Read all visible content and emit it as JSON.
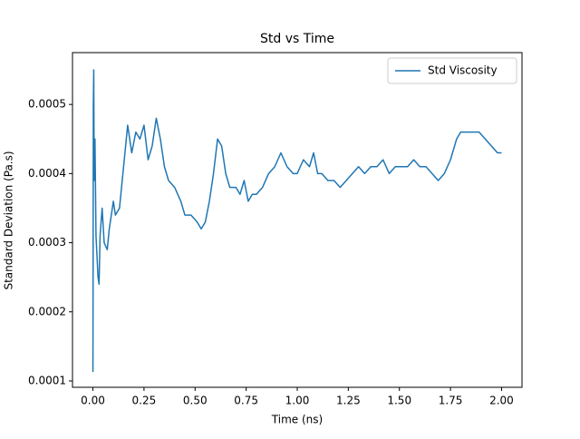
{
  "chart_data": {
    "type": "line",
    "title": "Std vs Time",
    "x_label": "Time (ns)",
    "y_label": "Standard Deviation (Pa.s)",
    "x": [
      0.0,
      0.002,
      0.004,
      0.006,
      0.01,
      0.015,
      0.02,
      0.025,
      0.03,
      0.035,
      0.045,
      0.055,
      0.07,
      0.08,
      0.1,
      0.11,
      0.13,
      0.15,
      0.17,
      0.19,
      0.21,
      0.23,
      0.25,
      0.27,
      0.29,
      0.31,
      0.33,
      0.35,
      0.37,
      0.4,
      0.43,
      0.45,
      0.48,
      0.51,
      0.53,
      0.55,
      0.57,
      0.59,
      0.61,
      0.63,
      0.65,
      0.67,
      0.7,
      0.72,
      0.74,
      0.76,
      0.78,
      0.8,
      0.83,
      0.86,
      0.89,
      0.92,
      0.95,
      0.98,
      1.0,
      1.03,
      1.06,
      1.08,
      1.1,
      1.12,
      1.15,
      1.18,
      1.21,
      1.24,
      1.27,
      1.3,
      1.33,
      1.36,
      1.39,
      1.42,
      1.45,
      1.48,
      1.51,
      1.54,
      1.57,
      1.6,
      1.63,
      1.66,
      1.69,
      1.72,
      1.75,
      1.78,
      1.8,
      1.83,
      1.86,
      1.89,
      1.92,
      1.95,
      1.98,
      2.0
    ],
    "series": [
      {
        "name": "Std Viscosity",
        "color": "#1f77b4",
        "values": [
          0.000113,
          0.0005,
          0.00055,
          0.00039,
          0.00045,
          0.00031,
          0.00028,
          0.00025,
          0.00024,
          0.00031,
          0.00035,
          0.0003,
          0.00029,
          0.00032,
          0.00036,
          0.00034,
          0.00035,
          0.00041,
          0.00047,
          0.00043,
          0.00046,
          0.00045,
          0.00047,
          0.00042,
          0.00044,
          0.00048,
          0.00045,
          0.00041,
          0.00039,
          0.00038,
          0.00036,
          0.00034,
          0.00034,
          0.00033,
          0.00032,
          0.00033,
          0.00036,
          0.0004,
          0.00045,
          0.00044,
          0.0004,
          0.00038,
          0.00038,
          0.00037,
          0.00039,
          0.00036,
          0.00037,
          0.00037,
          0.00038,
          0.0004,
          0.00041,
          0.00043,
          0.00041,
          0.0004,
          0.0004,
          0.00042,
          0.00041,
          0.00043,
          0.0004,
          0.0004,
          0.00039,
          0.00039,
          0.00038,
          0.00039,
          0.0004,
          0.00041,
          0.0004,
          0.00041,
          0.00041,
          0.00042,
          0.0004,
          0.00041,
          0.00041,
          0.00041,
          0.00042,
          0.00041,
          0.00041,
          0.0004,
          0.00039,
          0.0004,
          0.00042,
          0.00045,
          0.00046,
          0.00046,
          0.00046,
          0.00046,
          0.00045,
          0.00044,
          0.00043,
          0.00043
        ]
      }
    ],
    "xlim": [
      -0.1,
      2.1
    ],
    "ylim": [
      9.08e-05,
      0.000575
    ],
    "xticks": [
      {
        "value": 0,
        "label": "0.00"
      },
      {
        "value": 0.25,
        "label": "0.25"
      },
      {
        "value": 0.5,
        "label": "0.50"
      },
      {
        "value": 0.75,
        "label": "0.75"
      },
      {
        "value": 1,
        "label": "1.00"
      },
      {
        "value": 1.25,
        "label": "1.25"
      },
      {
        "value": 1.5,
        "label": "1.50"
      },
      {
        "value": 1.75,
        "label": "1.75"
      },
      {
        "value": 2,
        "label": "2.00"
      }
    ],
    "yticks": [
      0.0001,
      0.0002,
      0.0003,
      0.0004,
      0.0005
    ],
    "legend": "upper right"
  }
}
